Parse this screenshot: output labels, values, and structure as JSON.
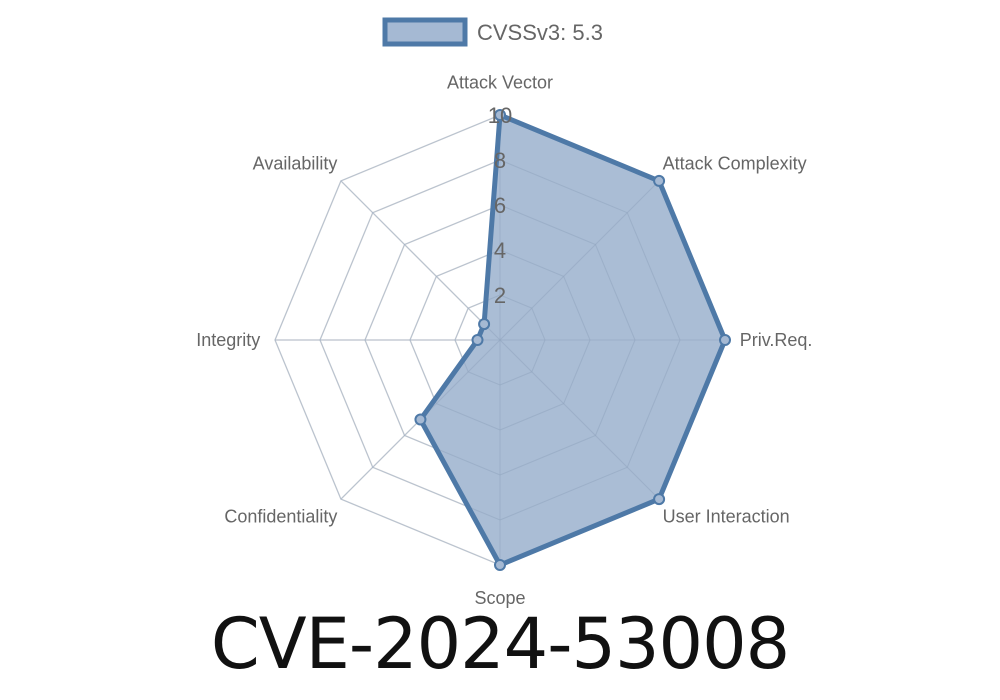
{
  "chart_data": {
    "type": "radar",
    "title": "CVE-2024-53008",
    "axes": [
      "Attack Vector",
      "Attack Complexity",
      "Priv.Req.",
      "User Interaction",
      "Scope",
      "Confidentiality",
      "Integrity",
      "Availability"
    ],
    "series": [
      {
        "name": "CVSSv3: 5.3",
        "values": [
          10,
          10,
          10,
          10,
          10,
          5,
          1,
          1
        ]
      }
    ],
    "rlim": [
      0,
      10
    ],
    "ticks": [
      "2",
      "4",
      "6",
      "8",
      "10"
    ],
    "grid": true,
    "legend": "top",
    "colors": {
      "line": "#4e79a7",
      "fill": "#a5b9d3",
      "grid": "#e0e0e0",
      "text": "#666666"
    }
  }
}
